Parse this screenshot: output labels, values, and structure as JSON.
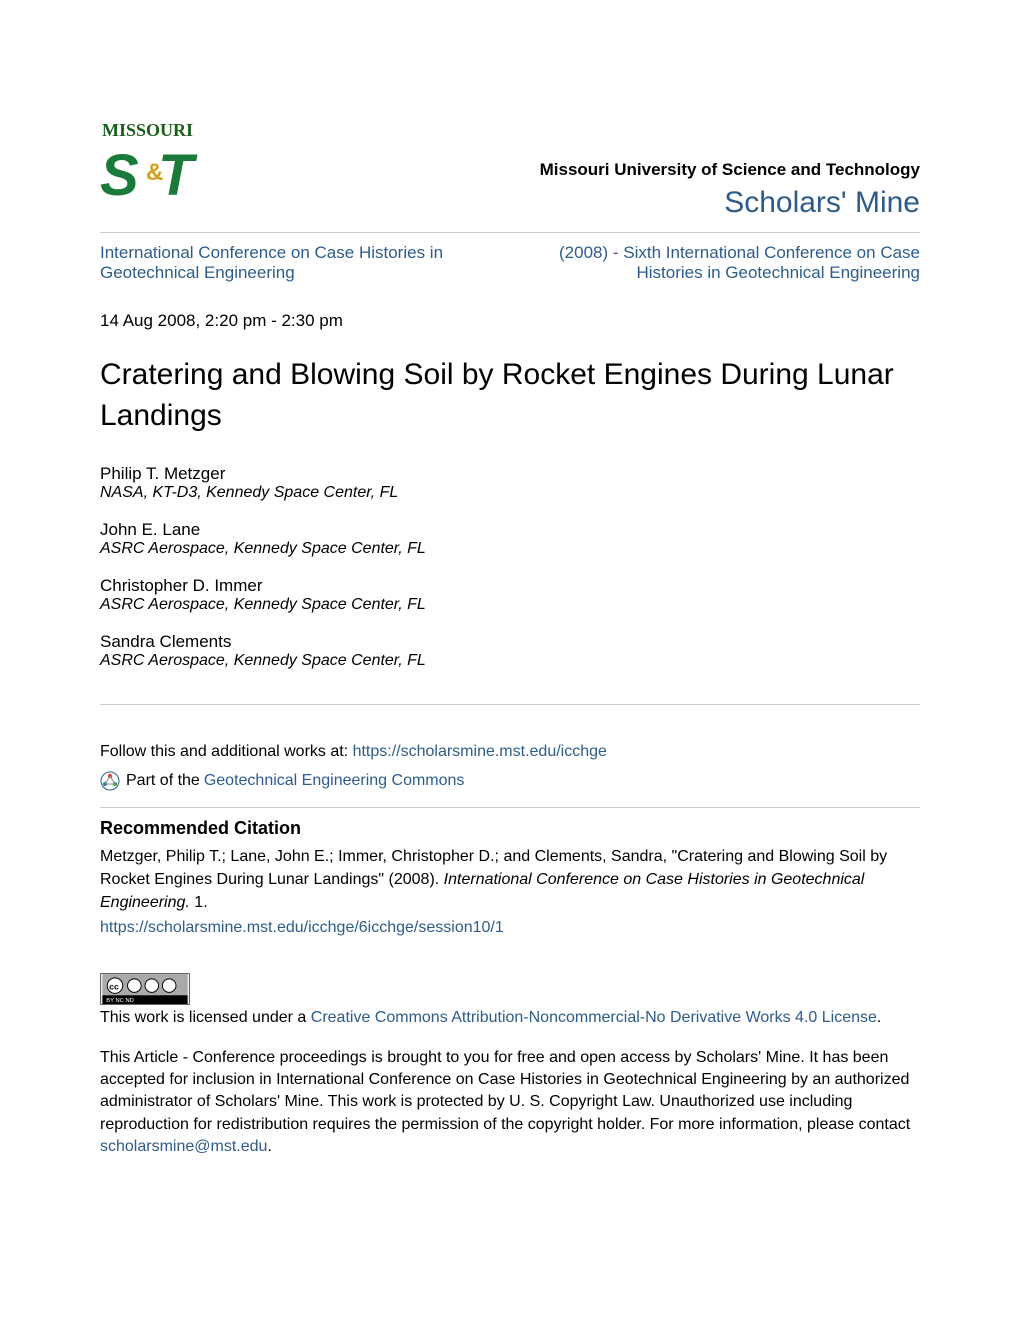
{
  "header": {
    "university_name": "Missouri University of Science and Technology",
    "repository_name": "Scholars' Mine",
    "logo": {
      "top_text": "MISSOURI",
      "main_text": "S&T",
      "primary_color": "#1a7a3a",
      "accent_color": "#d4a017"
    }
  },
  "breadcrumb": {
    "left": "International Conference on Case Histories in Geotechnical Engineering",
    "right": "(2008) - Sixth International Conference on Case Histories in Geotechnical Engineering"
  },
  "session": "14 Aug 2008, 2:20 pm - 2:30 pm",
  "title": "Cratering and Blowing Soil by Rocket Engines During Lunar Landings",
  "authors": [
    {
      "name": "Philip T. Metzger",
      "affil": "NASA, KT-D3, Kennedy Space Center, FL"
    },
    {
      "name": "John E. Lane",
      "affil": "ASRC Aerospace, Kennedy Space Center, FL"
    },
    {
      "name": "Christopher D. Immer",
      "affil": "ASRC Aerospace, Kennedy Space Center, FL"
    },
    {
      "name": "Sandra Clements",
      "affil": "ASRC Aerospace, Kennedy Space Center, FL"
    }
  ],
  "follow": {
    "prefix": "Follow this and additional works at: ",
    "url": "https://scholarsmine.mst.edu/icchge"
  },
  "part_of": {
    "prefix": "Part of the ",
    "link": "Geotechnical Engineering Commons"
  },
  "citation": {
    "heading": "Recommended Citation",
    "text_before_italic": "Metzger, Philip T.; Lane, John E.; Immer, Christopher D.; and Clements, Sandra, \"Cratering and Blowing Soil by Rocket Engines During Lunar Landings\" (2008). ",
    "italic": "International Conference on Case Histories in Geotechnical Engineering.",
    "after": " 1.",
    "url": "https://scholarsmine.mst.edu/icchge/6icchge/session10/1"
  },
  "license": {
    "badge_text": "CC BY-NC-ND",
    "prefix": "This work is licensed under a ",
    "link": "Creative Commons Attribution-Noncommercial-No Derivative Works 4.0 License",
    "suffix": "."
  },
  "footer": {
    "text_before_link": "This Article - Conference proceedings is brought to you for free and open access by Scholars' Mine. It has been accepted for inclusion in International Conference on Case Histories in Geotechnical Engineering by an authorized administrator of Scholars' Mine. This work is protected by U. S. Copyright Law. Unauthorized use including reproduction for redistribution requires the permission of the copyright holder. For more information, please contact ",
    "email": "scholarsmine@mst.edu",
    "suffix": "."
  },
  "colors": {
    "link": "#2e5c8a",
    "text": "#000000",
    "rule": "#cccccc"
  }
}
